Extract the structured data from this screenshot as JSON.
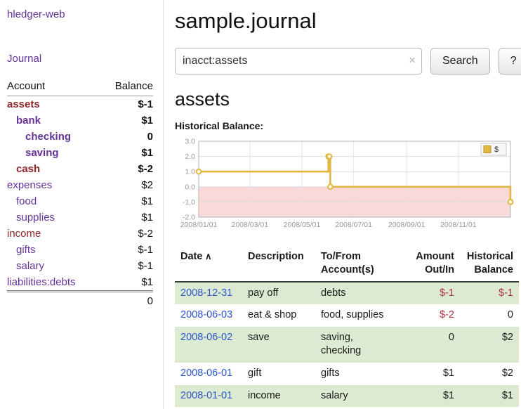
{
  "colors": {
    "link_purple": "#663399",
    "account_negative": "#8f2727",
    "amount_negative": "#a8323c",
    "date_blue": "#2b55cc",
    "row_green": "#dcead2",
    "chart_line": "#e0b840",
    "chart_line_border": "#b8922a",
    "chart_negative_fill": "#f9d9d9"
  },
  "sidebar": {
    "app_title": "hledger-web",
    "journal_link": "Journal",
    "accounts": {
      "headers": {
        "account": "Account",
        "balance": "Balance"
      },
      "rows": [
        {
          "account": "assets",
          "balance": "$-1",
          "indent": 0,
          "bold": true,
          "account_color": "maroon",
          "negative": true
        },
        {
          "account": "bank",
          "balance": "$1",
          "indent": 1,
          "bold": true,
          "account_color": "purple",
          "negative": false
        },
        {
          "account": "checking",
          "balance": "0",
          "indent": 2,
          "bold": true,
          "account_color": "purple",
          "negative": false
        },
        {
          "account": "saving",
          "balance": "$1",
          "indent": 2,
          "bold": true,
          "account_color": "purple",
          "negative": false
        },
        {
          "account": "cash",
          "balance": "$-2",
          "indent": 1,
          "bold": true,
          "account_color": "maroon",
          "negative": true
        },
        {
          "account": "expenses",
          "balance": "$2",
          "indent": 0,
          "bold": false,
          "account_color": "purple",
          "negative": false
        },
        {
          "account": "food",
          "balance": "$1",
          "indent": 1,
          "bold": false,
          "account_color": "purple",
          "negative": false
        },
        {
          "account": "supplies",
          "balance": "$1",
          "indent": 1,
          "bold": false,
          "account_color": "purple",
          "negative": false
        },
        {
          "account": "income",
          "balance": "$-2",
          "indent": 0,
          "bold": false,
          "account_color": "maroon",
          "negative": true
        },
        {
          "account": "gifts",
          "balance": "$-1",
          "indent": 1,
          "bold": false,
          "account_color": "purple",
          "negative": true
        },
        {
          "account": "salary",
          "balance": "$-1",
          "indent": 1,
          "bold": false,
          "account_color": "purple",
          "negative": true
        },
        {
          "account": "liabilities:debts",
          "balance": "$1",
          "indent": 0,
          "bold": false,
          "account_color": "purple",
          "negative": false
        }
      ],
      "total": "0"
    }
  },
  "main": {
    "title": "sample.journal",
    "search": {
      "value": "inacct:assets",
      "clear_icon": "×",
      "search_button": "Search",
      "help_button": "?"
    },
    "section_title": "assets",
    "chart_heading": "Historical Balance:"
  },
  "chart_data": {
    "type": "line",
    "title": "Historical Balance",
    "legend": [
      {
        "label": "$"
      }
    ],
    "ylim": [
      -2.0,
      3.0
    ],
    "yticks": [
      "3.0",
      "2.0",
      "1.0",
      "0.0",
      "-1.0",
      "-2.0"
    ],
    "ytick_values": [
      3,
      2,
      1,
      0,
      -1,
      -2
    ],
    "xticks": [
      {
        "label": "2008/01/01",
        "pos": 0.0
      },
      {
        "label": "2008/03/01",
        "pos": 0.164
      },
      {
        "label": "2008/05/01",
        "pos": 0.331
      },
      {
        "label": "2008/07/01",
        "pos": 0.497
      },
      {
        "label": "2008/09/01",
        "pos": 0.667
      },
      {
        "label": "2008/11/01",
        "pos": 0.833
      }
    ],
    "grid": true,
    "legend_position": "top-right",
    "series": [
      {
        "name": "$",
        "style": "step-after",
        "points": [
          {
            "date": "2008-01-01",
            "pos": 0.0,
            "y": 1.0
          },
          {
            "date": "2008-06-01",
            "pos": 0.416,
            "y": 2.0
          },
          {
            "date": "2008-06-02",
            "pos": 0.419,
            "y": 2.0
          },
          {
            "date": "2008-06-03",
            "pos": 0.422,
            "y": 0.0
          },
          {
            "date": "2008-12-31",
            "pos": 1.0,
            "y": -1.0
          }
        ]
      }
    ],
    "negative_region": {
      "from": 0,
      "to": -2
    }
  },
  "register": {
    "headers": [
      {
        "lines": [
          "Date"
        ],
        "sort_icon": "∧"
      },
      {
        "lines": [
          "Description"
        ]
      },
      {
        "lines": [
          "To/From",
          "Account(s)"
        ]
      },
      {
        "lines": [
          "Amount",
          "Out/In"
        ],
        "align": "right"
      },
      {
        "lines": [
          "Historical",
          "Balance"
        ],
        "align": "right"
      }
    ],
    "rows": [
      {
        "date": "2008-12-31",
        "description": "pay off",
        "accounts": "debts",
        "amount": "$-1",
        "amount_negative": true,
        "balance": "$-1",
        "balance_negative": true,
        "shaded": true
      },
      {
        "date": "2008-06-03",
        "description": "eat & shop",
        "accounts": "food, supplies",
        "amount": "$-2",
        "amount_negative": true,
        "balance": "0",
        "balance_negative": false,
        "shaded": false
      },
      {
        "date": "2008-06-02",
        "description": "save",
        "accounts": "saving,\nchecking",
        "amount": "0",
        "amount_negative": false,
        "balance": "$2",
        "balance_negative": false,
        "shaded": true
      },
      {
        "date": "2008-06-01",
        "description": "gift",
        "accounts": "gifts",
        "amount": "$1",
        "amount_negative": false,
        "balance": "$2",
        "balance_negative": false,
        "shaded": false
      },
      {
        "date": "2008-01-01",
        "description": "income",
        "accounts": "salary",
        "amount": "$1",
        "amount_negative": false,
        "balance": "$1",
        "balance_negative": false,
        "shaded": true
      }
    ]
  }
}
